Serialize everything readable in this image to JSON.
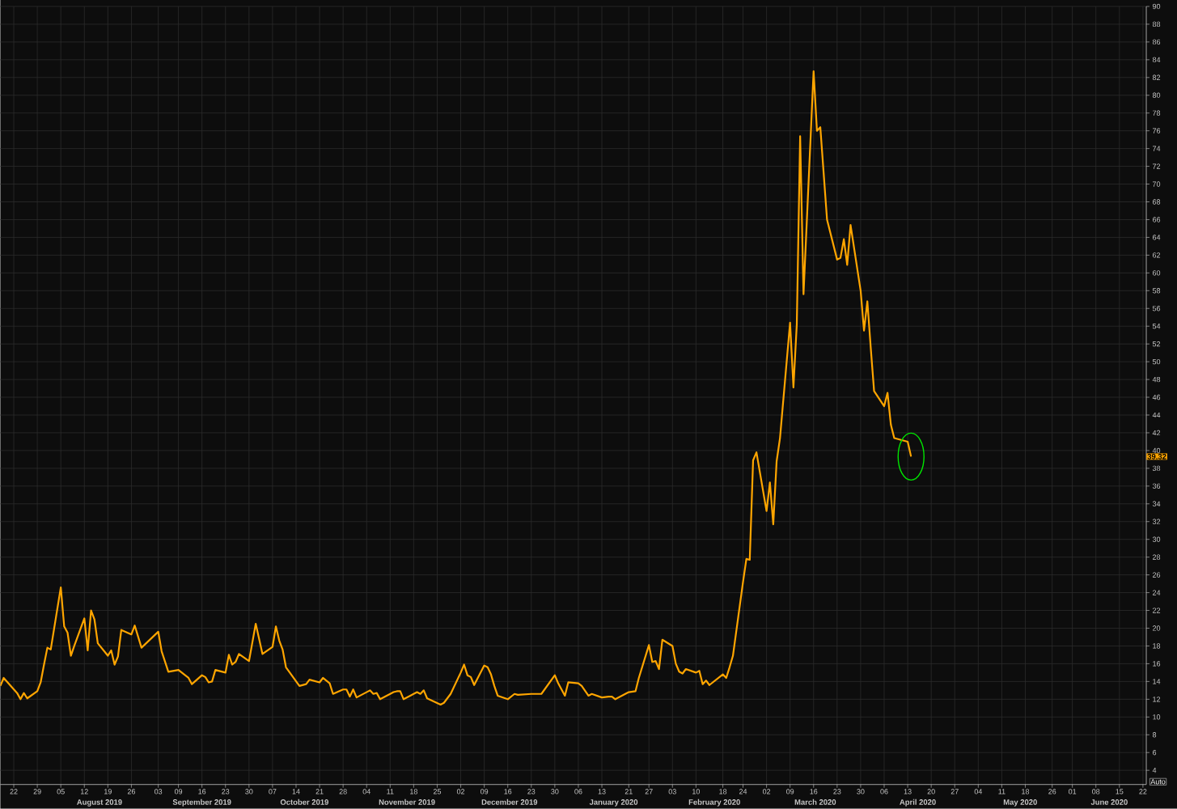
{
  "chart_data": {
    "type": "line",
    "color": "#ffa500",
    "grid": true,
    "xlim": [
      "2019-07-18",
      "2020-06-23"
    ],
    "ylim": [
      2.4,
      90
    ],
    "yticks": [
      4,
      6,
      8,
      10,
      12,
      14,
      16,
      18,
      20,
      22,
      24,
      26,
      28,
      30,
      32,
      34,
      36,
      38,
      40,
      42,
      44,
      46,
      48,
      50,
      52,
      54,
      56,
      58,
      60,
      62,
      64,
      66,
      68,
      70,
      72,
      74,
      76,
      78,
      80,
      82,
      84,
      86,
      88,
      90
    ],
    "xticks": [
      {
        "value": "2019-07-22",
        "label": "22"
      },
      {
        "value": "2019-07-29",
        "label": "29"
      },
      {
        "value": "2019-08-05",
        "label": "05"
      },
      {
        "value": "2019-08-12",
        "label": "12"
      },
      {
        "value": "2019-08-19",
        "label": "19"
      },
      {
        "value": "2019-08-26",
        "label": "26"
      },
      {
        "value": "2019-09-03",
        "label": "03"
      },
      {
        "value": "2019-09-09",
        "label": "09"
      },
      {
        "value": "2019-09-16",
        "label": "16"
      },
      {
        "value": "2019-09-23",
        "label": "23"
      },
      {
        "value": "2019-09-30",
        "label": "30"
      },
      {
        "value": "2019-10-07",
        "label": "07"
      },
      {
        "value": "2019-10-14",
        "label": "14"
      },
      {
        "value": "2019-10-21",
        "label": "21"
      },
      {
        "value": "2019-10-28",
        "label": "28"
      },
      {
        "value": "2019-11-04",
        "label": "04"
      },
      {
        "value": "2019-11-11",
        "label": "11"
      },
      {
        "value": "2019-11-18",
        "label": "18"
      },
      {
        "value": "2019-11-25",
        "label": "25"
      },
      {
        "value": "2019-12-02",
        "label": "02"
      },
      {
        "value": "2019-12-09",
        "label": "09"
      },
      {
        "value": "2019-12-16",
        "label": "16"
      },
      {
        "value": "2019-12-23",
        "label": "23"
      },
      {
        "value": "2019-12-30",
        "label": "30"
      },
      {
        "value": "2020-01-06",
        "label": "06"
      },
      {
        "value": "2020-01-13",
        "label": "13"
      },
      {
        "value": "2020-01-21",
        "label": "21"
      },
      {
        "value": "2020-01-27",
        "label": "27"
      },
      {
        "value": "2020-02-03",
        "label": "03"
      },
      {
        "value": "2020-02-10",
        "label": "10"
      },
      {
        "value": "2020-02-18",
        "label": "18"
      },
      {
        "value": "2020-02-24",
        "label": "24"
      },
      {
        "value": "2020-03-02",
        "label": "02"
      },
      {
        "value": "2020-03-09",
        "label": "09"
      },
      {
        "value": "2020-03-16",
        "label": "16"
      },
      {
        "value": "2020-03-23",
        "label": "23"
      },
      {
        "value": "2020-03-30",
        "label": "30"
      },
      {
        "value": "2020-04-06",
        "label": "06"
      },
      {
        "value": "2020-04-13",
        "label": "13"
      },
      {
        "value": "2020-04-20",
        "label": "20"
      },
      {
        "value": "2020-04-27",
        "label": "27"
      },
      {
        "value": "2020-05-04",
        "label": "04"
      },
      {
        "value": "2020-05-11",
        "label": "11"
      },
      {
        "value": "2020-05-18",
        "label": "18"
      },
      {
        "value": "2020-05-26",
        "label": "26"
      },
      {
        "value": "2020-06-01",
        "label": "01"
      },
      {
        "value": "2020-06-08",
        "label": "08"
      },
      {
        "value": "2020-06-15",
        "label": "15"
      },
      {
        "value": "2020-06-22",
        "label": "22"
      }
    ],
    "x": [
      "2019-07-18",
      "2019-07-19",
      "2019-07-23",
      "2019-07-24",
      "2019-07-25",
      "2019-07-26",
      "2019-07-29",
      "2019-07-30",
      "2019-07-31",
      "2019-08-01",
      "2019-08-02",
      "2019-08-05",
      "2019-08-06",
      "2019-08-07",
      "2019-08-08",
      "2019-08-09",
      "2019-08-12",
      "2019-08-13",
      "2019-08-14",
      "2019-08-15",
      "2019-08-16",
      "2019-08-19",
      "2019-08-20",
      "2019-08-21",
      "2019-08-22",
      "2019-08-23",
      "2019-08-26",
      "2019-08-27",
      "2019-08-29",
      "2019-09-03",
      "2019-09-04",
      "2019-09-06",
      "2019-09-09",
      "2019-09-12",
      "2019-09-13",
      "2019-09-16",
      "2019-09-17",
      "2019-09-18",
      "2019-09-19",
      "2019-09-20",
      "2019-09-23",
      "2019-09-24",
      "2019-09-25",
      "2019-09-26",
      "2019-09-27",
      "2019-09-30",
      "2019-10-02",
      "2019-10-04",
      "2019-10-07",
      "2019-10-08",
      "2019-10-09",
      "2019-10-10",
      "2019-10-11",
      "2019-10-15",
      "2019-10-17",
      "2019-10-18",
      "2019-10-21",
      "2019-10-22",
      "2019-10-24",
      "2019-10-25",
      "2019-10-28",
      "2019-10-29",
      "2019-10-30",
      "2019-10-31",
      "2019-11-01",
      "2019-11-05",
      "2019-11-06",
      "2019-11-07",
      "2019-11-08",
      "2019-11-11",
      "2019-11-12",
      "2019-11-13",
      "2019-11-14",
      "2019-11-15",
      "2019-11-19",
      "2019-11-20",
      "2019-11-21",
      "2019-11-22",
      "2019-11-26",
      "2019-11-27",
      "2019-11-29",
      "2019-12-02",
      "2019-12-03",
      "2019-12-04",
      "2019-12-05",
      "2019-12-06",
      "2019-12-09",
      "2019-12-10",
      "2019-12-11",
      "2019-12-12",
      "2019-12-13",
      "2019-12-16",
      "2019-12-18",
      "2019-12-19",
      "2019-12-23",
      "2019-12-26",
      "2019-12-30",
      "2019-12-31",
      "2020-01-02",
      "2020-01-03",
      "2020-01-06",
      "2020-01-07",
      "2020-01-09",
      "2020-01-10",
      "2020-01-13",
      "2020-01-15",
      "2020-01-16",
      "2020-01-17",
      "2020-01-21",
      "2020-01-23",
      "2020-01-24",
      "2020-01-27",
      "2020-01-28",
      "2020-01-29",
      "2020-01-30",
      "2020-01-31",
      "2020-02-03",
      "2020-02-04",
      "2020-02-05",
      "2020-02-06",
      "2020-02-07",
      "2020-02-10",
      "2020-02-11",
      "2020-02-12",
      "2020-02-13",
      "2020-02-14",
      "2020-02-18",
      "2020-02-19",
      "2020-02-20",
      "2020-02-21",
      "2020-02-24",
      "2020-02-25",
      "2020-02-26",
      "2020-02-27",
      "2020-02-28",
      "2020-03-02",
      "2020-03-03",
      "2020-03-04",
      "2020-03-05",
      "2020-03-06",
      "2020-03-09",
      "2020-03-10",
      "2020-03-11",
      "2020-03-12",
      "2020-03-13",
      "2020-03-16",
      "2020-03-17",
      "2020-03-18",
      "2020-03-19",
      "2020-03-20",
      "2020-03-23",
      "2020-03-24",
      "2020-03-25",
      "2020-03-26",
      "2020-03-27",
      "2020-03-30",
      "2020-03-31",
      "2020-04-01",
      "2020-04-02",
      "2020-04-03",
      "2020-04-06",
      "2020-04-07",
      "2020-04-08",
      "2020-04-09",
      "2020-04-13",
      "2020-04-14"
    ],
    "values": [
      13.5,
      14.4,
      12.7,
      12.0,
      12.7,
      12.1,
      12.9,
      13.9,
      15.9,
      17.8,
      17.6,
      24.6,
      20.2,
      19.5,
      16.9,
      18.0,
      21.1,
      17.5,
      22.0,
      21.0,
      18.3,
      16.9,
      17.5,
      15.9,
      16.8,
      19.8,
      19.3,
      20.3,
      17.8,
      19.6,
      17.4,
      15.1,
      15.3,
      14.4,
      13.7,
      14.7,
      14.5,
      13.9,
      14.0,
      15.3,
      15.0,
      17.0,
      15.9,
      16.2,
      17.1,
      16.3,
      20.5,
      17.1,
      17.9,
      20.2,
      18.6,
      17.6,
      15.6,
      13.5,
      13.7,
      14.2,
      13.9,
      14.4,
      13.8,
      12.6,
      13.1,
      13.1,
      12.3,
      13.1,
      12.2,
      13.0,
      12.6,
      12.7,
      12.0,
      12.6,
      12.8,
      12.9,
      12.9,
      12.0,
      12.8,
      12.6,
      13.0,
      12.1,
      11.4,
      11.6,
      12.6,
      15.0,
      15.9,
      14.7,
      14.5,
      13.6,
      15.8,
      15.6,
      14.8,
      13.5,
      12.4,
      12.0,
      12.6,
      12.5,
      12.6,
      12.6,
      14.7,
      13.8,
      12.4,
      13.9,
      13.8,
      13.5,
      12.4,
      12.6,
      12.2,
      12.3,
      12.3,
      12.0,
      12.8,
      12.9,
      14.4,
      18.1,
      16.2,
      16.3,
      15.4,
      18.7,
      18.0,
      16.0,
      15.1,
      14.9,
      15.4,
      15.0,
      15.2,
      13.7,
      14.1,
      13.6,
      14.8,
      14.4,
      15.6,
      16.9,
      25.2,
      27.8,
      27.7,
      38.9,
      39.8,
      33.2,
      36.4,
      31.7,
      38.8,
      41.4,
      54.4,
      47.1,
      54.2,
      75.4,
      57.6,
      82.7,
      76.0,
      76.4,
      71.2,
      66.0,
      61.5,
      61.7,
      63.8,
      60.9,
      65.4,
      58.0,
      53.5,
      56.8,
      51.6,
      46.7,
      45.0,
      46.5,
      42.9,
      41.4,
      41.0,
      39.32
    ],
    "annotations": [
      "39.32",
      "August 2019",
      "September 2019",
      "October 2019",
      "November 2019",
      "December 2019",
      "January 2020",
      "February 2020",
      "March 2020",
      "April 2020",
      "May 2020",
      "June 2020",
      "Auto"
    ]
  }
}
